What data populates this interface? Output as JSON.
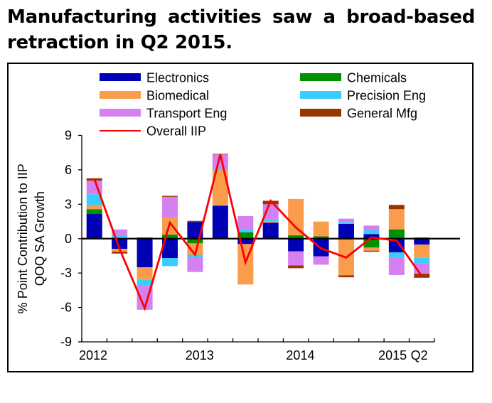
{
  "page": {
    "title": "Manufacturing activities saw a broad-based retraction in Q2 2015."
  },
  "chart_data": {
    "type": "bar",
    "stacked": true,
    "title": "Manufacturing activities saw a broad-based retraction in Q2 2015.",
    "xlabel": "",
    "ylabel": "% Point Contribution to IIP QOQ SA Growth",
    "ylabel_lines": [
      "% Point Contribution to IIP",
      "QOQ SA Growth"
    ],
    "ylim": [
      -9,
      9
    ],
    "yticks": [
      9,
      6,
      3,
      0,
      -3,
      -6,
      -9
    ],
    "grid": false,
    "legend_position": "top",
    "categories": [
      "2012 Q1",
      "2012 Q2",
      "2012 Q3",
      "2012 Q4",
      "2013 Q1",
      "2013 Q2",
      "2013 Q3",
      "2013 Q4",
      "2014 Q1",
      "2014 Q2",
      "2014 Q3",
      "2014 Q4",
      "2015 Q1",
      "2015 Q2"
    ],
    "xtick_labels": [
      {
        "index": 0,
        "label": "2012"
      },
      {
        "index": 4,
        "label": "2013"
      },
      {
        "index": 8,
        "label": "2014"
      },
      {
        "index": 12,
        "label": "2015"
      },
      {
        "index": 13,
        "label": "Q2"
      }
    ],
    "series": [
      {
        "name": "Electronics",
        "color": "#0000b4",
        "values": [
          2.15,
          -0.9,
          -2.5,
          -1.7,
          1.45,
          2.88,
          -0.47,
          1.39,
          -1.1,
          -1.55,
          1.29,
          0.4,
          -1.2,
          -0.52
        ]
      },
      {
        "name": "Chemicals",
        "color": "#009000",
        "values": [
          0.42,
          0,
          0,
          0.35,
          -0.41,
          0,
          0.56,
          0,
          0.29,
          0.2,
          0,
          -0.78,
          0.81,
          0.1
        ]
      },
      {
        "name": "Biomedical",
        "color": "#f99c4c",
        "values": [
          0.33,
          -0.24,
          -1.1,
          1.5,
          -1.0,
          3.1,
          -3.53,
          0.14,
          3.17,
          1.29,
          -3.2,
          -0.27,
          1.76,
          -1.16
        ]
      },
      {
        "name": "Precision Eng",
        "color": "#38ccff",
        "values": [
          0.97,
          0.3,
          -0.45,
          -0.7,
          -0.25,
          0.12,
          0.27,
          0.17,
          0,
          0,
          0.16,
          0.33,
          -0.48,
          -0.45
        ]
      },
      {
        "name": "Transport Eng",
        "color": "#d580f0",
        "values": [
          1.18,
          0.5,
          -2.15,
          1.8,
          -1.25,
          1.24,
          1.14,
          1.3,
          -1.24,
          -0.72,
          0.29,
          0.41,
          -1.49,
          -0.93
        ]
      },
      {
        "name": "General Mfg",
        "color": "#9a3400",
        "values": [
          0.21,
          -0.16,
          0.1,
          0.08,
          0.1,
          0.05,
          0,
          0.3,
          -0.24,
          0,
          -0.17,
          -0.09,
          0.37,
          -0.35
        ]
      }
    ],
    "line_series": {
      "name": "Overall IIP",
      "color": "#ff0000",
      "values": [
        5.2,
        -0.9,
        -6.06,
        1.39,
        -1.4,
        7.35,
        -2.07,
        3.3,
        0.97,
        -0.85,
        -1.65,
        0.1,
        -0.17,
        -3.27
      ]
    },
    "legend": [
      {
        "name": "Electronics",
        "kind": "bar",
        "color": "#0000b4"
      },
      {
        "name": "Chemicals",
        "kind": "bar",
        "color": "#009000"
      },
      {
        "name": "Biomedical",
        "kind": "bar",
        "color": "#f99c4c"
      },
      {
        "name": "Precision Eng",
        "kind": "bar",
        "color": "#38ccff"
      },
      {
        "name": "Transport Eng",
        "kind": "bar",
        "color": "#d580f0"
      },
      {
        "name": "General Mfg",
        "kind": "bar",
        "color": "#9a3400"
      },
      {
        "name": "Overall IIP",
        "kind": "line",
        "color": "#ff0000"
      }
    ]
  }
}
